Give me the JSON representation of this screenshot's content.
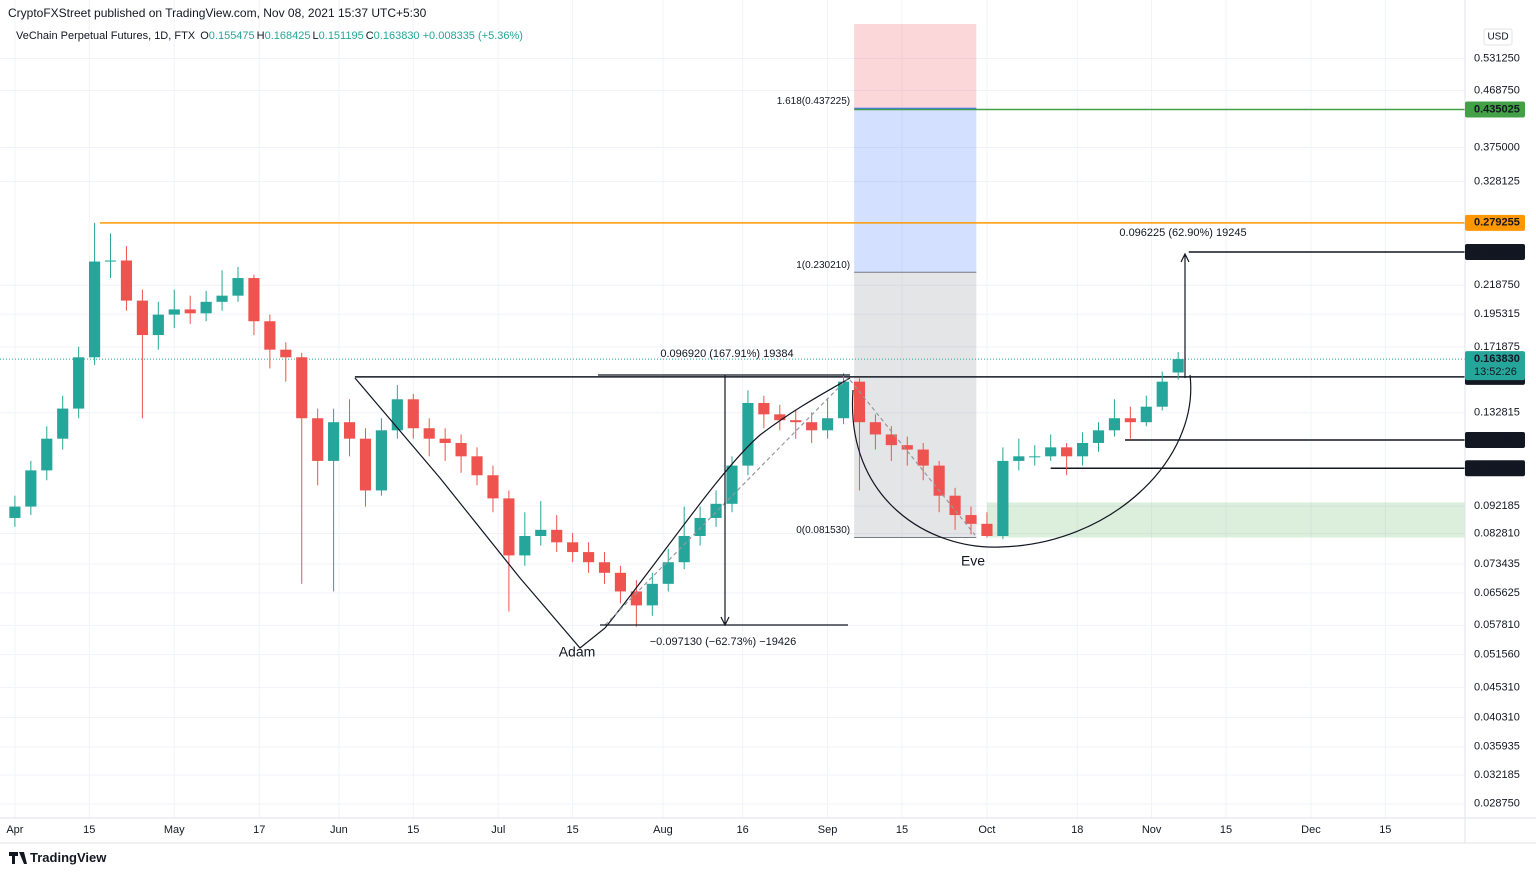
{
  "header": "CryptoFXStreet published on TradingView.com, Nov 08, 2021 15:37 UTC+5:30",
  "footer": "TradingView",
  "currency": "USD",
  "measurements": [
    "0.096920 (167.91%) 19384",
    "−0.097130 (−62.73%) −19426",
    "0.096225 (62.90%) 19245"
  ],
  "annotations": [
    "Adam",
    "Eve"
  ],
  "chart_data": {
    "type": "candlestick",
    "title": "VeChain Perpetual Futures, 1D, FTX",
    "ohlc_legend": [
      {
        "key": "O",
        "value": "0.155475"
      },
      {
        "key": "H",
        "value": "0.168425"
      },
      {
        "key": "L",
        "value": "0.151195"
      },
      {
        "key": "C",
        "value": "0.163830"
      }
    ],
    "change": "+0.008335 (+5.36%)",
    "up_color": "#26a69a",
    "down_color": "#ef5350",
    "log_y": true,
    "grid": true,
    "xlim": [
      -1.3,
      273
    ],
    "ylim": [
      0.0272,
      0.608
    ],
    "xticks": [
      {
        "value": 0,
        "label": "Apr"
      },
      {
        "value": 14,
        "label": "15"
      },
      {
        "value": 30,
        "label": "May"
      },
      {
        "value": 46,
        "label": "17"
      },
      {
        "value": 61,
        "label": "Jun"
      },
      {
        "value": 75,
        "label": "15"
      },
      {
        "value": 91,
        "label": "Jul"
      },
      {
        "value": 105,
        "label": "15"
      },
      {
        "value": 122,
        "label": "Aug"
      },
      {
        "value": 137,
        "label": "16"
      },
      {
        "value": 153,
        "label": "Sep"
      },
      {
        "value": 167,
        "label": "15"
      },
      {
        "value": 183,
        "label": "Oct"
      },
      {
        "value": 200,
        "label": "18"
      },
      {
        "value": 214,
        "label": "Nov"
      },
      {
        "value": 228,
        "label": "15"
      },
      {
        "value": 244,
        "label": "Dec"
      },
      {
        "value": 258,
        "label": "15"
      }
    ],
    "yticks": [
      {
        "value": 0.53125,
        "label": "0.531250"
      },
      {
        "value": 0.46875,
        "label": "0.468750"
      },
      {
        "value": 0.375,
        "label": "0.375000"
      },
      {
        "value": 0.328125,
        "label": "0.328125"
      },
      {
        "value": 0.21875,
        "label": "0.218750"
      },
      {
        "value": 0.195315,
        "label": "0.195315"
      },
      {
        "value": 0.171875,
        "label": "0.171875"
      },
      {
        "value": 0.132815,
        "label": "0.132815"
      },
      {
        "value": 0.092185,
        "label": "0.092185"
      },
      {
        "value": 0.08281,
        "label": "0.082810"
      },
      {
        "value": 0.073435,
        "label": "0.073435"
      },
      {
        "value": 0.065625,
        "label": "0.065625"
      },
      {
        "value": 0.05781,
        "label": "0.057810"
      },
      {
        "value": 0.05156,
        "label": "0.051560"
      },
      {
        "value": 0.04531,
        "label": "0.045310"
      },
      {
        "value": 0.04031,
        "label": "0.040310"
      },
      {
        "value": 0.035935,
        "label": "0.035935"
      },
      {
        "value": 0.032185,
        "label": "0.032185"
      },
      {
        "value": 0.02875,
        "label": "0.028750"
      }
    ],
    "x": [
      0,
      3,
      6,
      9,
      12,
      15,
      18,
      21,
      24,
      27,
      30,
      33,
      36,
      39,
      42,
      45,
      48,
      51,
      54,
      57,
      60,
      63,
      66,
      69,
      72,
      75,
      78,
      81,
      84,
      87,
      90,
      93,
      96,
      99,
      102,
      105,
      108,
      111,
      114,
      117,
      120,
      123,
      126,
      129,
      132,
      135,
      138,
      141,
      144,
      147,
      150,
      153,
      156,
      159,
      162,
      165,
      168,
      171,
      174,
      177,
      180,
      183,
      186,
      189,
      192,
      195,
      198,
      201,
      204,
      207,
      210,
      213,
      216,
      219
    ],
    "open": [
      0.088,
      0.092,
      0.106,
      0.12,
      0.135,
      0.165,
      0.24,
      0.241,
      0.206,
      0.18,
      0.195,
      0.199,
      0.196,
      0.205,
      0.21,
      0.225,
      0.19,
      0.17,
      0.165,
      0.13,
      0.11,
      0.128,
      0.12,
      0.098,
      0.124,
      0.14,
      0.125,
      0.12,
      0.118,
      0.112,
      0.104,
      0.095,
      0.076,
      0.082,
      0.084,
      0.08,
      0.077,
      0.074,
      0.071,
      0.066,
      0.0625,
      0.068,
      0.074,
      0.082,
      0.088,
      0.093,
      0.108,
      0.138,
      0.132,
      0.129,
      0.128,
      0.124,
      0.13,
      0.15,
      0.128,
      0.122,
      0.117,
      0.115,
      0.108,
      0.096,
      0.089,
      0.086,
      0.082,
      0.11,
      0.112,
      0.112,
      0.116,
      0.112,
      0.118,
      0.124,
      0.13,
      0.128,
      0.136,
      0.155475
    ],
    "high": [
      0.096,
      0.11,
      0.126,
      0.142,
      0.172,
      0.279255,
      0.268,
      0.255,
      0.215,
      0.205,
      0.215,
      0.21,
      0.214,
      0.232,
      0.235,
      0.228,
      0.195,
      0.175,
      0.168,
      0.135,
      0.135,
      0.14,
      0.125,
      0.13,
      0.148,
      0.143,
      0.13,
      0.125,
      0.122,
      0.116,
      0.108,
      0.098,
      0.09,
      0.094,
      0.089,
      0.083,
      0.08,
      0.077,
      0.073,
      0.069,
      0.071,
      0.078,
      0.092,
      0.092,
      0.098,
      0.112,
      0.145,
      0.142,
      0.137,
      0.134,
      0.133,
      0.14,
      0.155,
      0.152,
      0.132,
      0.126,
      0.121,
      0.118,
      0.11,
      0.099,
      0.092,
      0.09,
      0.116,
      0.12,
      0.117,
      0.122,
      0.118,
      0.123,
      0.128,
      0.14,
      0.136,
      0.142,
      0.156,
      0.168425
    ],
    "low": [
      0.085,
      0.089,
      0.102,
      0.115,
      0.13,
      0.16,
      0.225,
      0.198,
      0.13,
      0.17,
      0.185,
      0.188,
      0.19,
      0.198,
      0.205,
      0.18,
      0.158,
      0.15,
      0.068,
      0.1,
      0.066,
      0.112,
      0.092,
      0.096,
      0.12,
      0.12,
      0.112,
      0.11,
      0.105,
      0.1,
      0.09,
      0.061,
      0.073,
      0.079,
      0.077,
      0.074,
      0.071,
      0.068,
      0.063,
      0.0575,
      0.06,
      0.066,
      0.072,
      0.079,
      0.085,
      0.09,
      0.104,
      0.125,
      0.124,
      0.12,
      0.118,
      0.12,
      0.127,
      0.098,
      0.115,
      0.11,
      0.108,
      0.102,
      0.09,
      0.084,
      0.0825,
      0.0815,
      0.081,
      0.106,
      0.108,
      0.11,
      0.104,
      0.108,
      0.114,
      0.121,
      0.12,
      0.126,
      0.134,
      0.151195
    ],
    "close": [
      0.092,
      0.106,
      0.12,
      0.135,
      0.165,
      0.24,
      0.241,
      0.206,
      0.18,
      0.195,
      0.199,
      0.196,
      0.205,
      0.21,
      0.225,
      0.19,
      0.17,
      0.165,
      0.13,
      0.11,
      0.128,
      0.12,
      0.098,
      0.124,
      0.14,
      0.125,
      0.12,
      0.118,
      0.112,
      0.104,
      0.095,
      0.076,
      0.082,
      0.084,
      0.08,
      0.077,
      0.074,
      0.071,
      0.066,
      0.0625,
      0.068,
      0.074,
      0.082,
      0.088,
      0.093,
      0.108,
      0.138,
      0.132,
      0.129,
      0.128,
      0.124,
      0.13,
      0.15,
      0.128,
      0.122,
      0.117,
      0.115,
      0.108,
      0.096,
      0.089,
      0.086,
      0.082,
      0.11,
      0.112,
      0.112,
      0.116,
      0.112,
      0.118,
      0.124,
      0.13,
      0.128,
      0.136,
      0.15,
      0.16383
    ],
    "price_levels": [
      {
        "value": 0.435025,
        "from": 158,
        "color": "#43a047",
        "text_color": "#ffffff"
      },
      {
        "value": 0.279255,
        "from": 16,
        "color": "#ff9800",
        "text_color": "#131722"
      },
      {
        "value": 0.249195,
        "from": 221,
        "color": "#131722",
        "text_color": "#ffffff"
      },
      {
        "value": 0.152865,
        "from": 64,
        "color": "#131722",
        "text_color": "#ffffff"
      },
      {
        "value": 0.119385,
        "from": 209,
        "color": "#131722",
        "text_color": "#ffffff"
      },
      {
        "value": 0.106905,
        "from": 195,
        "color": "#131722",
        "text_color": "#ffffff"
      }
    ],
    "last_price": {
      "value": 0.16383,
      "label": "0.163830",
      "countdown": "13:52:26",
      "color": "#26a69a"
    },
    "fib": {
      "from": 158,
      "to": 181,
      "levels": [
        {
          "value": 0.437225,
          "label": "1.618(0.437225)",
          "color": "#2962ff"
        },
        {
          "value": 0.23021,
          "label": "1(0.230210)",
          "color": "#787b86"
        },
        {
          "value": 0.08153,
          "label": "0(0.081530)",
          "color": "#787b86"
        }
      ],
      "fills": [
        "rgba(242,54,69,0.2)",
        "rgba(41,98,255,0.2)",
        "rgba(120,123,134,0.2)"
      ]
    },
    "zone": {
      "low": 0.08153,
      "high": 0.0935,
      "from": 183,
      "color": "rgba(76,175,80,0.2)"
    }
  }
}
